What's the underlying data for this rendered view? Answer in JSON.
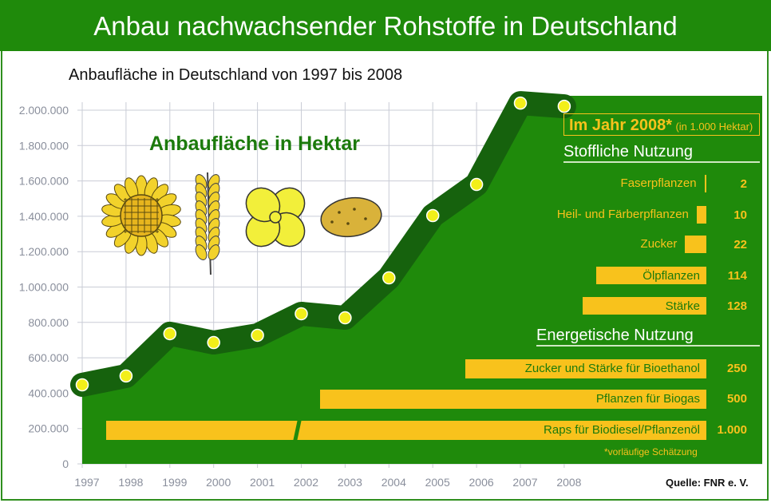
{
  "title": "Anbau nachwachsender Rohstoffe in Deutschland",
  "subtitle": "Anbaufläche in Deutschland von 1997 bis 2008",
  "chart_label": "Anbaufläche in Hektar",
  "colors": {
    "green": "#1f8a0b",
    "dark_green": "#16620d",
    "yellow": "#f8c21c",
    "point": "#f2ef1a"
  },
  "icons": [
    "sunflower-icon",
    "wheat-icon",
    "rapeseed-flower-icon",
    "potato-icon"
  ],
  "chart_data": [
    {
      "type": "area",
      "x": [
        "1997",
        "1998",
        "1999",
        "2000",
        "2001",
        "2002",
        "2003",
        "2004",
        "2005",
        "2006",
        "2007",
        "2008"
      ],
      "values": [
        447000,
        497000,
        736000,
        686000,
        727000,
        849000,
        826000,
        1052000,
        1404000,
        1580000,
        2040000,
        2022000
      ],
      "ylim": [
        0,
        2000000
      ],
      "yticks": [
        "0",
        "200.000",
        "400.000",
        "600.000",
        "800.000",
        "1.000.000",
        "1.200.000",
        "1.400.000",
        "1.600.000",
        "1.800.000",
        "2.000.000"
      ],
      "grid": true
    },
    {
      "type": "bar",
      "title": "Im Jahr 2008*",
      "unit": "(in 1.000 Hektar)",
      "groups": [
        {
          "name": "Stoffliche Nutzung",
          "items": [
            {
              "label": "Faserpflanzen",
              "value": 2,
              "display": "2"
            },
            {
              "label": "Heil- und Färberpflanzen",
              "value": 10,
              "display": "10"
            },
            {
              "label": "Zucker",
              "value": 22,
              "display": "22"
            },
            {
              "label": "Ölpflanzen",
              "value": 114,
              "display": "114"
            },
            {
              "label": "Stärke",
              "value": 128,
              "display": "128"
            }
          ]
        },
        {
          "name": "Energetische Nutzung",
          "items": [
            {
              "label": "Zucker und Stärke für Bioethanol",
              "value": 250,
              "display": "250"
            },
            {
              "label": "Pflanzen für Biogas",
              "value": 500,
              "display": "500"
            },
            {
              "label": "Raps für Biodiesel/Pflanzenöl",
              "value": 1000,
              "display": "1.000",
              "axis_break": true
            }
          ]
        }
      ],
      "footnote": "*vorläufige Schätzung"
    }
  ],
  "source": "Quelle: FNR e. V."
}
